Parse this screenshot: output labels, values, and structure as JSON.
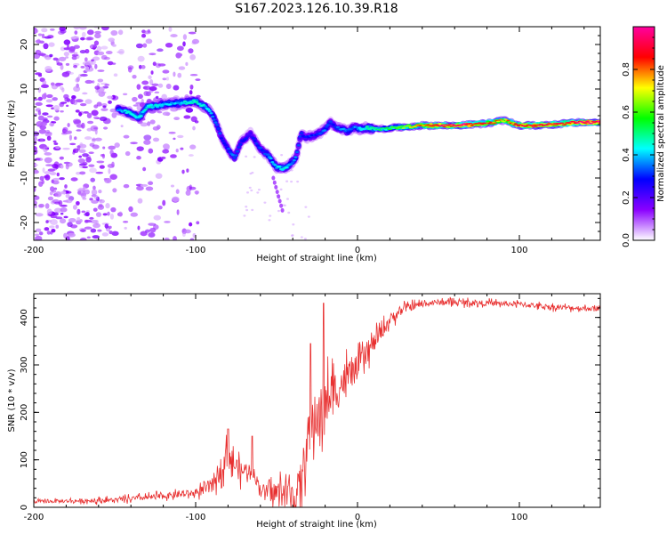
{
  "title": "S167.2023.126.10.39.R18",
  "chart_data": [
    {
      "type": "heatmap",
      "xlabel": "Height of straight line (km)",
      "ylabel": "Frequency (Hz)",
      "xlim": [
        -200,
        150
      ],
      "ylim": [
        -24,
        24
      ],
      "x_ticks": [
        "-200",
        "-100",
        "0",
        "100"
      ],
      "x_tick_values": [
        -200,
        -100,
        0,
        100
      ],
      "y_ticks": [
        "-20",
        "-10",
        "0",
        "10",
        "20"
      ],
      "y_tick_values": [
        -20,
        -10,
        0,
        10,
        20
      ],
      "colorbar": {
        "label": "Normalized spectral amplitude",
        "range": [
          0,
          1
        ],
        "ticks": [
          "0.0",
          "0.2",
          "0.4",
          "0.6",
          "0.8"
        ],
        "tick_values": [
          0,
          0.2,
          0.4,
          0.6,
          0.8
        ],
        "colormap": [
          "#ffffff",
          "#8a00ff",
          "#0000ff",
          "#00ffff",
          "#00ff00",
          "#ffff00",
          "#ff0000",
          "#ff00a0"
        ]
      },
      "ridge": {
        "x": [
          -148,
          -140,
          -135,
          -130,
          -120,
          -110,
          -100,
          -92,
          -88,
          -84,
          -80,
          -76,
          -72,
          -66,
          -62,
          -58,
          -54,
          -50,
          -46,
          -42,
          -38,
          -35,
          -32,
          -28,
          -24,
          -20,
          -17,
          -14,
          -10,
          -6,
          -2,
          2,
          6,
          12,
          20,
          30,
          40,
          50,
          60,
          70,
          78,
          84,
          88,
          92,
          96,
          100,
          110,
          120,
          130,
          140,
          150
        ],
        "y": [
          5.5,
          4.5,
          3.5,
          6,
          6.5,
          6.8,
          7.2,
          5.5,
          3,
          -1,
          -3.5,
          -5.5,
          -2,
          0,
          -2.5,
          -4,
          -5.5,
          -7.5,
          -8,
          -7,
          -5.5,
          0,
          -1,
          -0.5,
          0,
          1,
          2.5,
          1.5,
          1,
          0.5,
          1.5,
          1,
          1.3,
          1,
          1.2,
          1.5,
          1.8,
          1.8,
          1.8,
          2,
          2.2,
          2.5,
          2.8,
          3,
          2.2,
          1.8,
          1.8,
          2,
          2.3,
          2.5,
          2.5
        ],
        "amplitude": [
          0.35,
          0.45,
          0.45,
          0.45,
          0.4,
          0.4,
          0.45,
          0.4,
          0.35,
          0.3,
          0.3,
          0.35,
          0.3,
          0.25,
          0.3,
          0.3,
          0.4,
          0.4,
          0.45,
          0.4,
          0.35,
          0.3,
          0.3,
          0.3,
          0.3,
          0.35,
          0.3,
          0.3,
          0.35,
          0.35,
          0.35,
          0.4,
          0.45,
          0.5,
          0.55,
          0.65,
          0.8,
          0.9,
          0.95,
          0.9,
          0.85,
          0.8,
          0.75,
          0.75,
          0.8,
          0.9,
          0.9,
          0.9,
          0.9,
          0.95,
          0.95
        ]
      }
    },
    {
      "type": "line",
      "xlabel": "Height of straight line (km)",
      "ylabel": "SNR (10 * v/v)",
      "xlim": [
        -200,
        150
      ],
      "ylim": [
        0,
        450
      ],
      "x_ticks": [
        "-200",
        "-100",
        "0",
        "100"
      ],
      "x_tick_values": [
        -200,
        -100,
        0,
        100
      ],
      "y_ticks": [
        "0",
        "100",
        "200",
        "300",
        "400"
      ],
      "y_tick_values": [
        0,
        100,
        200,
        300,
        400
      ],
      "color": "#e83030",
      "envelope": {
        "x": [
          -200,
          -150,
          -125,
          -100,
          -90,
          -85,
          -80,
          -76,
          -72,
          -68,
          -64,
          -60,
          -56,
          -52,
          -48,
          -44,
          -40,
          -37,
          -34,
          -31,
          -28,
          -25,
          -22,
          -19,
          -16,
          -12,
          -8,
          -4,
          0,
          5,
          10,
          15,
          20,
          25,
          30,
          40,
          50,
          60,
          80,
          100,
          120,
          150
        ],
        "y": [
          12,
          15,
          22,
          30,
          45,
          80,
          110,
          90,
          75,
          80,
          70,
          40,
          32,
          30,
          32,
          30,
          25,
          28,
          70,
          140,
          170,
          190,
          200,
          220,
          240,
          250,
          270,
          280,
          295,
          320,
          345,
          370,
          395,
          410,
          420,
          428,
          432,
          432,
          430,
          428,
          422,
          418
        ]
      },
      "noise": {
        "x": [
          -200,
          -100,
          -80,
          -60,
          -35,
          -20,
          0,
          20,
          40,
          150
        ],
        "amplitude": [
          6,
          14,
          55,
          20,
          90,
          110,
          50,
          25,
          12,
          10
        ]
      },
      "spikes": [
        {
          "x": -80,
          "y": 165
        },
        {
          "x": -65,
          "y": 150
        },
        {
          "x": -29,
          "y": 345
        },
        {
          "x": -21,
          "y": 430
        }
      ]
    }
  ]
}
